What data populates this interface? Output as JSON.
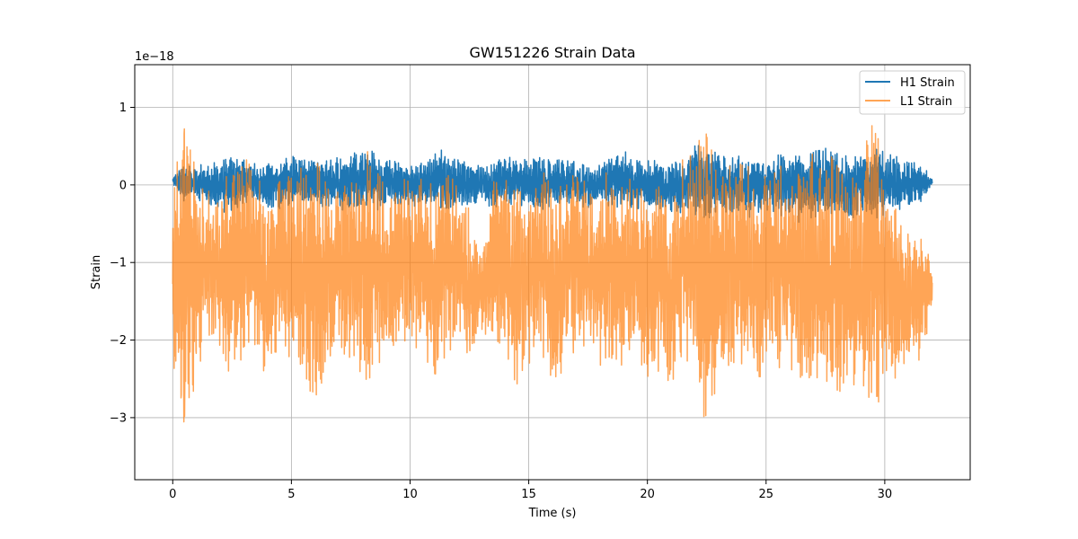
{
  "chart_data": {
    "type": "line",
    "title": "GW151226 Strain Data",
    "xlabel": "Time (s)",
    "ylabel": "Strain",
    "offset_label": "1e−18",
    "xlim": [
      -1.6,
      33.6
    ],
    "ylim": [
      -3.8,
      1.55
    ],
    "x_ticks": [
      0,
      5,
      10,
      15,
      20,
      25,
      30
    ],
    "y_ticks": [
      1,
      0,
      -1,
      -2,
      -3
    ],
    "y_tick_labels": [
      "1",
      "0",
      "−1",
      "−2",
      "−3"
    ],
    "grid": true,
    "legend_position": "top-right",
    "series": [
      {
        "name": "H1 Strain",
        "color": "#1f77b4",
        "opacity": 1.0,
        "x": [
          0,
          0.5,
          1,
          1.5,
          2,
          2.5,
          3,
          3.5,
          4,
          4.5,
          5,
          5.5,
          6,
          6.5,
          7,
          7.5,
          8,
          8.5,
          9,
          9.5,
          10,
          10.5,
          11,
          11.5,
          12,
          12.5,
          13,
          13.5,
          14,
          14.5,
          15,
          15.5,
          16,
          16.5,
          17,
          17.5,
          18,
          18.5,
          19,
          19.5,
          20,
          20.5,
          21,
          21.5,
          22,
          22.5,
          23,
          23.5,
          24,
          24.5,
          25,
          25.5,
          26,
          26.5,
          27,
          27.5,
          28,
          28.5,
          29,
          29.5,
          30,
          30.5,
          31,
          31.5,
          32
        ],
        "upper": [
          0.1,
          0.3,
          0.25,
          0.3,
          0.35,
          0.4,
          0.35,
          0.3,
          0.3,
          0.35,
          0.4,
          0.35,
          0.3,
          0.35,
          0.4,
          0.45,
          0.5,
          0.45,
          0.35,
          0.3,
          0.3,
          0.3,
          0.4,
          0.5,
          0.35,
          0.3,
          0.3,
          0.35,
          0.4,
          0.35,
          0.35,
          0.4,
          0.35,
          0.35,
          0.3,
          0.3,
          0.35,
          0.4,
          0.45,
          0.35,
          0.35,
          0.3,
          0.35,
          0.3,
          0.55,
          0.5,
          0.4,
          0.35,
          0.4,
          0.35,
          0.35,
          0.4,
          0.45,
          0.4,
          0.45,
          0.5,
          0.45,
          0.4,
          0.45,
          0.5,
          0.45,
          0.4,
          0.35,
          0.3,
          0.1
        ],
        "lower": [
          0.0,
          -0.25,
          -0.2,
          -0.3,
          -0.35,
          -0.4,
          -0.3,
          -0.25,
          -0.3,
          -0.35,
          -0.3,
          -0.25,
          -0.3,
          -0.3,
          -0.35,
          -0.3,
          -0.3,
          -0.35,
          -0.3,
          -0.25,
          -0.3,
          -0.25,
          -0.3,
          -0.35,
          -0.3,
          -0.25,
          -0.3,
          -0.35,
          -0.3,
          -0.25,
          -0.3,
          -0.35,
          -0.3,
          -0.25,
          -0.3,
          -0.3,
          -0.35,
          -0.3,
          -0.3,
          -0.35,
          -0.3,
          -0.35,
          -0.4,
          -0.35,
          -0.4,
          -0.45,
          -0.35,
          -0.4,
          -0.45,
          -0.4,
          -0.35,
          -0.4,
          -0.45,
          -0.5,
          -0.45,
          -0.4,
          -0.5,
          -0.45,
          -0.4,
          -0.45,
          -0.4,
          -0.35,
          -0.3,
          -0.25,
          0.0
        ]
      },
      {
        "name": "L1 Strain",
        "color": "#ff7f0e",
        "opacity": 0.7,
        "x": [
          0,
          0.5,
          1,
          1.5,
          2,
          2.5,
          3,
          3.5,
          4,
          4.5,
          5,
          5.5,
          6,
          6.5,
          7,
          7.5,
          8,
          8.5,
          9,
          9.5,
          10,
          10.5,
          11,
          11.5,
          12,
          12.5,
          13,
          13.5,
          14,
          14.5,
          15,
          15.5,
          16,
          16.5,
          17,
          17.5,
          18,
          18.5,
          19,
          19.5,
          20,
          20.5,
          21,
          21.5,
          22,
          22.5,
          23,
          23.5,
          24,
          24.5,
          25,
          25.5,
          26,
          26.5,
          27,
          27.5,
          28,
          28.5,
          29,
          29.5,
          30,
          30.5,
          31,
          31.5,
          32
        ],
        "upper": [
          0.3,
          1.3,
          0.2,
          0.0,
          -0.1,
          0.35,
          0.4,
          0.3,
          -0.2,
          0.2,
          0.3,
          0.3,
          0.6,
          0.3,
          0.0,
          0.2,
          0.5,
          0.45,
          0.0,
          0.1,
          0.2,
          0.3,
          0.0,
          0.5,
          0.1,
          -0.3,
          -0.9,
          0.1,
          0.2,
          0.0,
          0.1,
          0.3,
          0.1,
          0.0,
          0.4,
          0.0,
          0.1,
          0.3,
          0.0,
          0.2,
          -0.2,
          0.1,
          0.0,
          0.4,
          0.5,
          1.15,
          0.3,
          0.4,
          0.5,
          0.1,
          0.4,
          0.3,
          0.6,
          0.2,
          0.5,
          0.3,
          0.6,
          0.2,
          0.4,
          1.0,
          0.3,
          -0.3,
          -0.5,
          -0.6,
          -0.9
        ],
        "lower": [
          -2.9,
          -3.55,
          -2.6,
          -2.0,
          -2.2,
          -2.5,
          -2.3,
          -2.1,
          -2.7,
          -2.1,
          -2.4,
          -2.6,
          -2.9,
          -2.5,
          -2.1,
          -2.3,
          -2.8,
          -2.4,
          -2.3,
          -2.1,
          -2.2,
          -2.1,
          -2.6,
          -2.3,
          -2.0,
          -2.5,
          -1.9,
          -2.1,
          -2.2,
          -2.6,
          -2.4,
          -2.2,
          -2.8,
          -2.5,
          -2.3,
          -2.1,
          -2.5,
          -2.3,
          -2.4,
          -2.2,
          -2.6,
          -2.5,
          -2.6,
          -2.4,
          -2.5,
          -3.55,
          -2.6,
          -2.4,
          -2.5,
          -2.6,
          -2.4,
          -2.5,
          -2.6,
          -2.8,
          -2.5,
          -2.6,
          -2.7,
          -2.8,
          -2.6,
          -3.25,
          -2.6,
          -2.5,
          -2.4,
          -2.3,
          -1.7
        ]
      }
    ]
  }
}
